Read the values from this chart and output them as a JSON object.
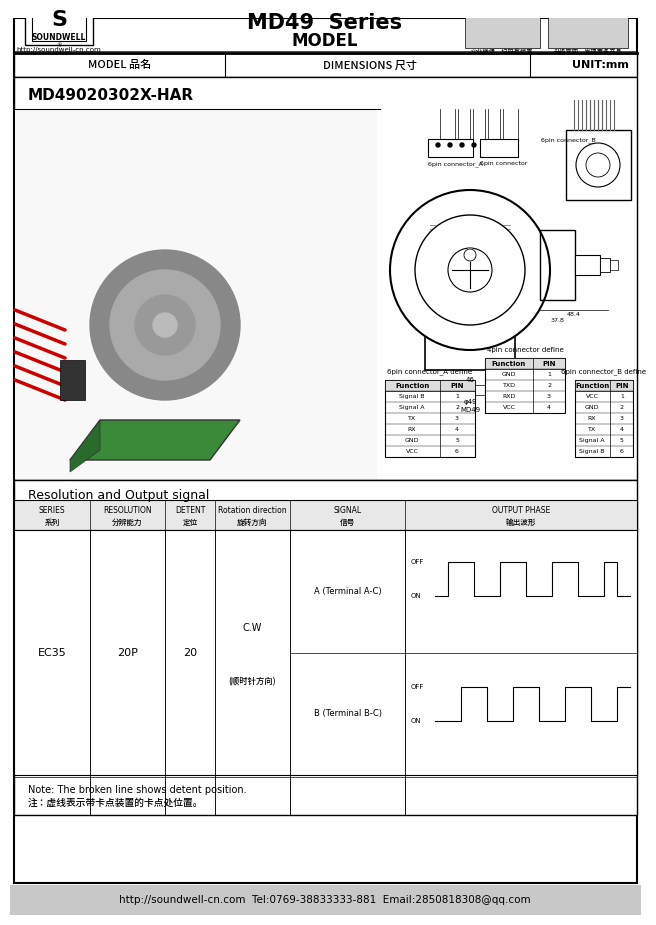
{
  "title_company": "SOUNDWELL",
  "title_url": "http://soundwell-cn.com",
  "title_model": "MD49  Series",
  "title_sub": "MODEL",
  "header_row": [
    "MODEL 品名",
    "DIMENSIONS 尺寸",
    "UNIT:mm"
  ],
  "model_name": "MD49020302X-HAR",
  "qr_caption1": "企业微信，扫码有惊喜",
  "qr_caption2": "升级官网，发现更多产品",
  "resolution_title": "Resolution and Output signal",
  "series_label": "系列",
  "resolution_label": "分辨能力",
  "detent_label": "定位",
  "rotation_label": "旋转方向",
  "signal_label": "信号",
  "output_label": "输出波形",
  "cw_text": "C.W",
  "cw_sub": "(顺时针方向)",
  "note_en": "Note: The broken line shows detent position.",
  "note_cn": "注：虚线表示带卡点装置的卡点处位置。",
  "footer": "http://soundwell-cn.com  Tel:0769-38833333-881  Email:2850818308@qq.com",
  "connector_a_title": "6pin connector_A define",
  "connector_b_title": "4pin connector define",
  "connector_c_title": "6pin connector_B define",
  "conn_a_headers": [
    "Function",
    "PIN"
  ],
  "conn_a_rows": [
    [
      "Signal B",
      "1"
    ],
    [
      "Signal A",
      "2"
    ],
    [
      "TX",
      "3"
    ],
    [
      "RX",
      "4"
    ],
    [
      "GND",
      "5"
    ],
    [
      "VCC",
      "6"
    ]
  ],
  "conn_b_headers": [
    "Function",
    "PIN"
  ],
  "conn_b_rows": [
    [
      "GND",
      "1"
    ],
    [
      "TXD",
      "2"
    ],
    [
      "RXD",
      "3"
    ],
    [
      "VCC",
      "4"
    ]
  ],
  "conn_c_headers": [
    "Function",
    "PIN"
  ],
  "conn_c_rows": [
    [
      "VCC",
      "1"
    ],
    [
      "GND",
      "2"
    ],
    [
      "RX",
      "3"
    ],
    [
      "TX",
      "4"
    ],
    [
      "Signal A",
      "5"
    ],
    [
      "Signal B",
      "6"
    ]
  ],
  "bg_color": "#ffffff",
  "footer_bg": "#c8c8c8",
  "table_header_bg": "#e8e8e8"
}
